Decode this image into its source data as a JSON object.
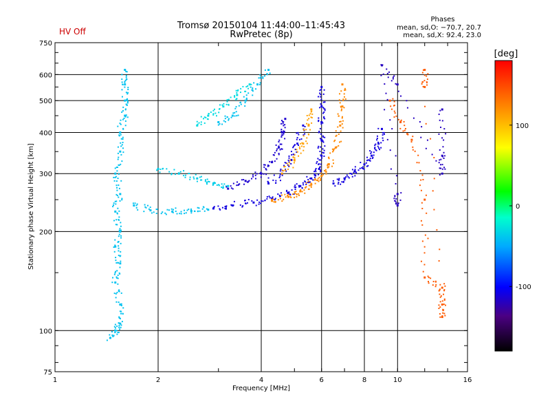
{
  "header": {
    "title": "Tromsø 20150104 11:44:00–11:45:43",
    "subtitle": "RwPretec (8p)",
    "status": "HV Off",
    "status_color": "#cc0000"
  },
  "phases": {
    "title": "Phases",
    "line_o": "mean, sd,O: −70.7, 20.7",
    "line_x": "mean, sd,X:  92.4, 23.0"
  },
  "chart_data": {
    "type": "scatter",
    "title": "Tromsø 20150104 11:44:00–11:45:43",
    "xlabel": "Frequency [MHz]",
    "ylabel": "Stationary phase Virtual Height [km]",
    "x_scale": "log",
    "y_scale": "log",
    "xlim": [
      1,
      16
    ],
    "ylim": [
      75,
      750
    ],
    "x_ticks": [
      1,
      2,
      4,
      6,
      8,
      10,
      16
    ],
    "y_ticks": [
      75,
      100,
      200,
      300,
      400,
      500,
      600,
      750
    ],
    "grid": true,
    "colorbar": {
      "label": "[deg]",
      "ticks": [
        100,
        0,
        -100
      ],
      "range": [
        -180,
        180
      ]
    },
    "traces": [
      {
        "name": "",
        "color_value": -40,
        "points": [
          [
            1.45,
            95
          ],
          [
            1.5,
            100
          ],
          [
            1.55,
            105
          ],
          [
            1.55,
            120
          ],
          [
            1.5,
            140
          ],
          [
            1.55,
            160
          ],
          [
            1.5,
            180
          ],
          [
            1.55,
            200
          ],
          [
            1.5,
            230
          ],
          [
            1.55,
            260
          ],
          [
            1.5,
            300
          ],
          [
            1.55,
            350
          ],
          [
            1.55,
            400
          ],
          [
            1.6,
            450
          ],
          [
            1.6,
            500
          ],
          [
            1.6,
            560
          ],
          [
            1.6,
            620
          ]
        ]
      },
      {
        "name": "",
        "color_value": -40,
        "points": [
          [
            1.7,
            240
          ],
          [
            1.9,
            232
          ],
          [
            2.2,
            230
          ],
          [
            2.5,
            231
          ],
          [
            2.8,
            233
          ]
        ]
      },
      {
        "name": "",
        "color_value": -35,
        "points": [
          [
            2.0,
            310
          ],
          [
            2.3,
            300
          ],
          [
            2.6,
            290
          ],
          [
            2.9,
            280
          ],
          [
            3.2,
            275
          ]
        ]
      },
      {
        "name": "",
        "color_value": -30,
        "points": [
          [
            2.6,
            420
          ],
          [
            2.8,
            450
          ],
          [
            3.1,
            480
          ],
          [
            3.4,
            520
          ],
          [
            3.7,
            560
          ]
        ]
      },
      {
        "name": "",
        "color_value": -40,
        "points": [
          [
            3.0,
            430
          ],
          [
            3.3,
            450
          ],
          [
            3.6,
            500
          ],
          [
            3.9,
            560
          ],
          [
            4.2,
            620
          ]
        ]
      },
      {
        "name": "",
        "color_value": -110,
        "points": [
          [
            2.9,
            235
          ],
          [
            3.3,
            240
          ],
          [
            3.8,
            245
          ],
          [
            4.3,
            252
          ],
          [
            4.8,
            262
          ],
          [
            5.2,
            275
          ],
          [
            5.6,
            290
          ],
          [
            5.9,
            310
          ],
          [
            6.0,
            340
          ],
          [
            6.0,
            380
          ],
          [
            6.0,
            430
          ],
          [
            6.0,
            480
          ],
          [
            6.0,
            550
          ]
        ]
      },
      {
        "name": "",
        "color_value": 120,
        "points": [
          [
            4.3,
            248
          ],
          [
            4.8,
            255
          ],
          [
            5.2,
            265
          ],
          [
            5.6,
            278
          ],
          [
            6.0,
            295
          ],
          [
            6.3,
            320
          ],
          [
            6.6,
            360
          ],
          [
            6.8,
            420
          ],
          [
            6.9,
            480
          ],
          [
            6.9,
            560
          ]
        ]
      },
      {
        "name": "",
        "color_value": -110,
        "points": [
          [
            4.2,
            280
          ],
          [
            4.6,
            300
          ],
          [
            4.9,
            330
          ],
          [
            5.1,
            370
          ],
          [
            5.3,
            420
          ]
        ]
      },
      {
        "name": "",
        "color_value": 110,
        "points": [
          [
            4.6,
            300
          ],
          [
            5.0,
            330
          ],
          [
            5.3,
            370
          ],
          [
            5.5,
            420
          ],
          [
            5.6,
            470
          ]
        ]
      },
      {
        "name": "",
        "color_value": -110,
        "points": [
          [
            6.5,
            280
          ],
          [
            7.0,
            290
          ],
          [
            7.5,
            305
          ],
          [
            8.0,
            320
          ],
          [
            8.4,
            340
          ],
          [
            8.8,
            370
          ],
          [
            9.0,
            410
          ]
        ]
      },
      {
        "name": "",
        "color_value": -115,
        "points": [
          [
            3.2,
            270
          ],
          [
            3.6,
            285
          ],
          [
            4.0,
            300
          ],
          [
            4.3,
            325
          ],
          [
            4.5,
            360
          ],
          [
            4.6,
            400
          ],
          [
            4.7,
            440
          ]
        ]
      },
      {
        "name": "",
        "color_value": 140,
        "points": [
          [
            9.5,
            500
          ],
          [
            10.2,
            430
          ],
          [
            11.0,
            380
          ],
          [
            12.0,
            250
          ],
          [
            12.0,
            145
          ],
          [
            13.5,
            135
          ],
          [
            13.5,
            120
          ],
          [
            13.5,
            110
          ],
          [
            12.0,
            620
          ],
          [
            12.0,
            550
          ]
        ]
      },
      {
        "name": "",
        "color_value": -120,
        "points": [
          [
            13.5,
            470
          ],
          [
            13.5,
            340
          ],
          [
            13.5,
            300
          ],
          [
            10.0,
            560
          ],
          [
            9.0,
            640
          ],
          [
            10.0,
            260
          ],
          [
            10.0,
            240
          ]
        ]
      }
    ]
  }
}
